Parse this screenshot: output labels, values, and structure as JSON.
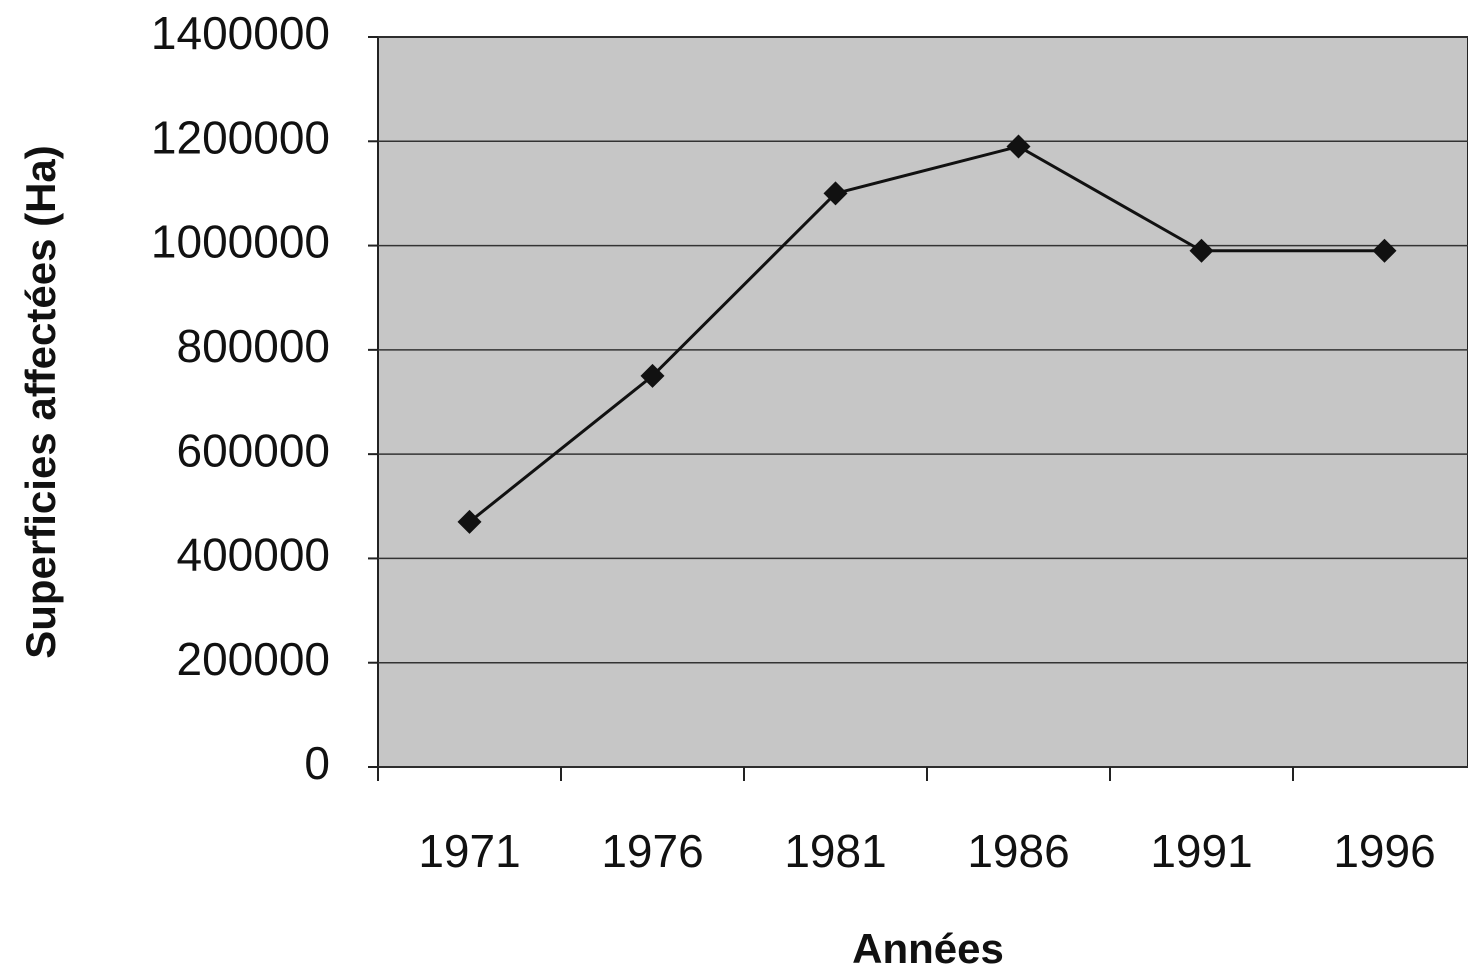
{
  "chart_data": {
    "type": "line",
    "x_label": "Années",
    "y_label": "Superficies affectées  (Ha)",
    "categories": [
      "1971",
      "1976",
      "1981",
      "1986",
      "1991",
      "1996"
    ],
    "series": [
      {
        "name": "Superficies affectées",
        "color": "#111111",
        "values": [
          470000,
          750000,
          1100000,
          1190000,
          990000,
          990000
        ]
      }
    ],
    "ylim": [
      0,
      1400000
    ],
    "yticks": [
      0,
      200000,
      400000,
      600000,
      800000,
      1000000,
      1200000,
      1400000
    ],
    "grid": true
  }
}
